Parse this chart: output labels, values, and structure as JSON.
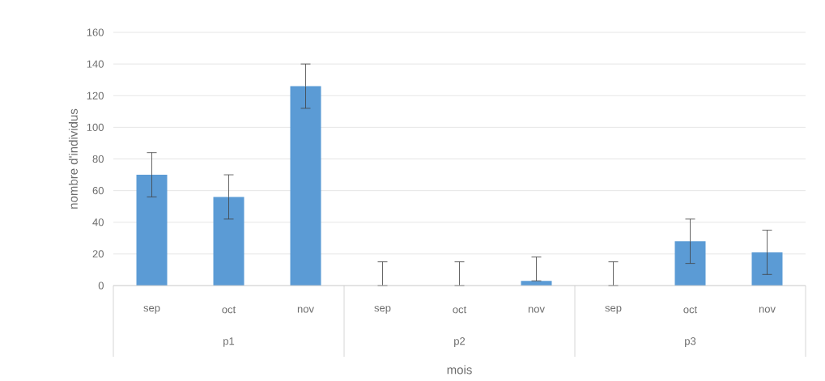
{
  "chart_data": {
    "type": "bar",
    "categories": [
      "sep",
      "oct",
      "nov",
      "sep",
      "oct",
      "nov",
      "sep",
      "oct",
      "nov"
    ],
    "values": [
      70,
      56,
      126,
      0,
      0,
      3,
      0,
      28,
      21
    ],
    "errors": [
      14,
      14,
      14,
      [
        0,
        15
      ],
      [
        0,
        15
      ],
      [
        3,
        18
      ],
      [
        0,
        15
      ],
      14,
      14
    ],
    "color": "#5b9bd5",
    "xlabel": "mois",
    "ylabel": "nombre d'individus",
    "annotations": [
      "p1",
      "p2",
      "p3"
    ],
    "ylim": [
      0,
      160
    ],
    "yticks": [
      0,
      20,
      40,
      60,
      80,
      100,
      120,
      140,
      160
    ],
    "grid": "y"
  }
}
